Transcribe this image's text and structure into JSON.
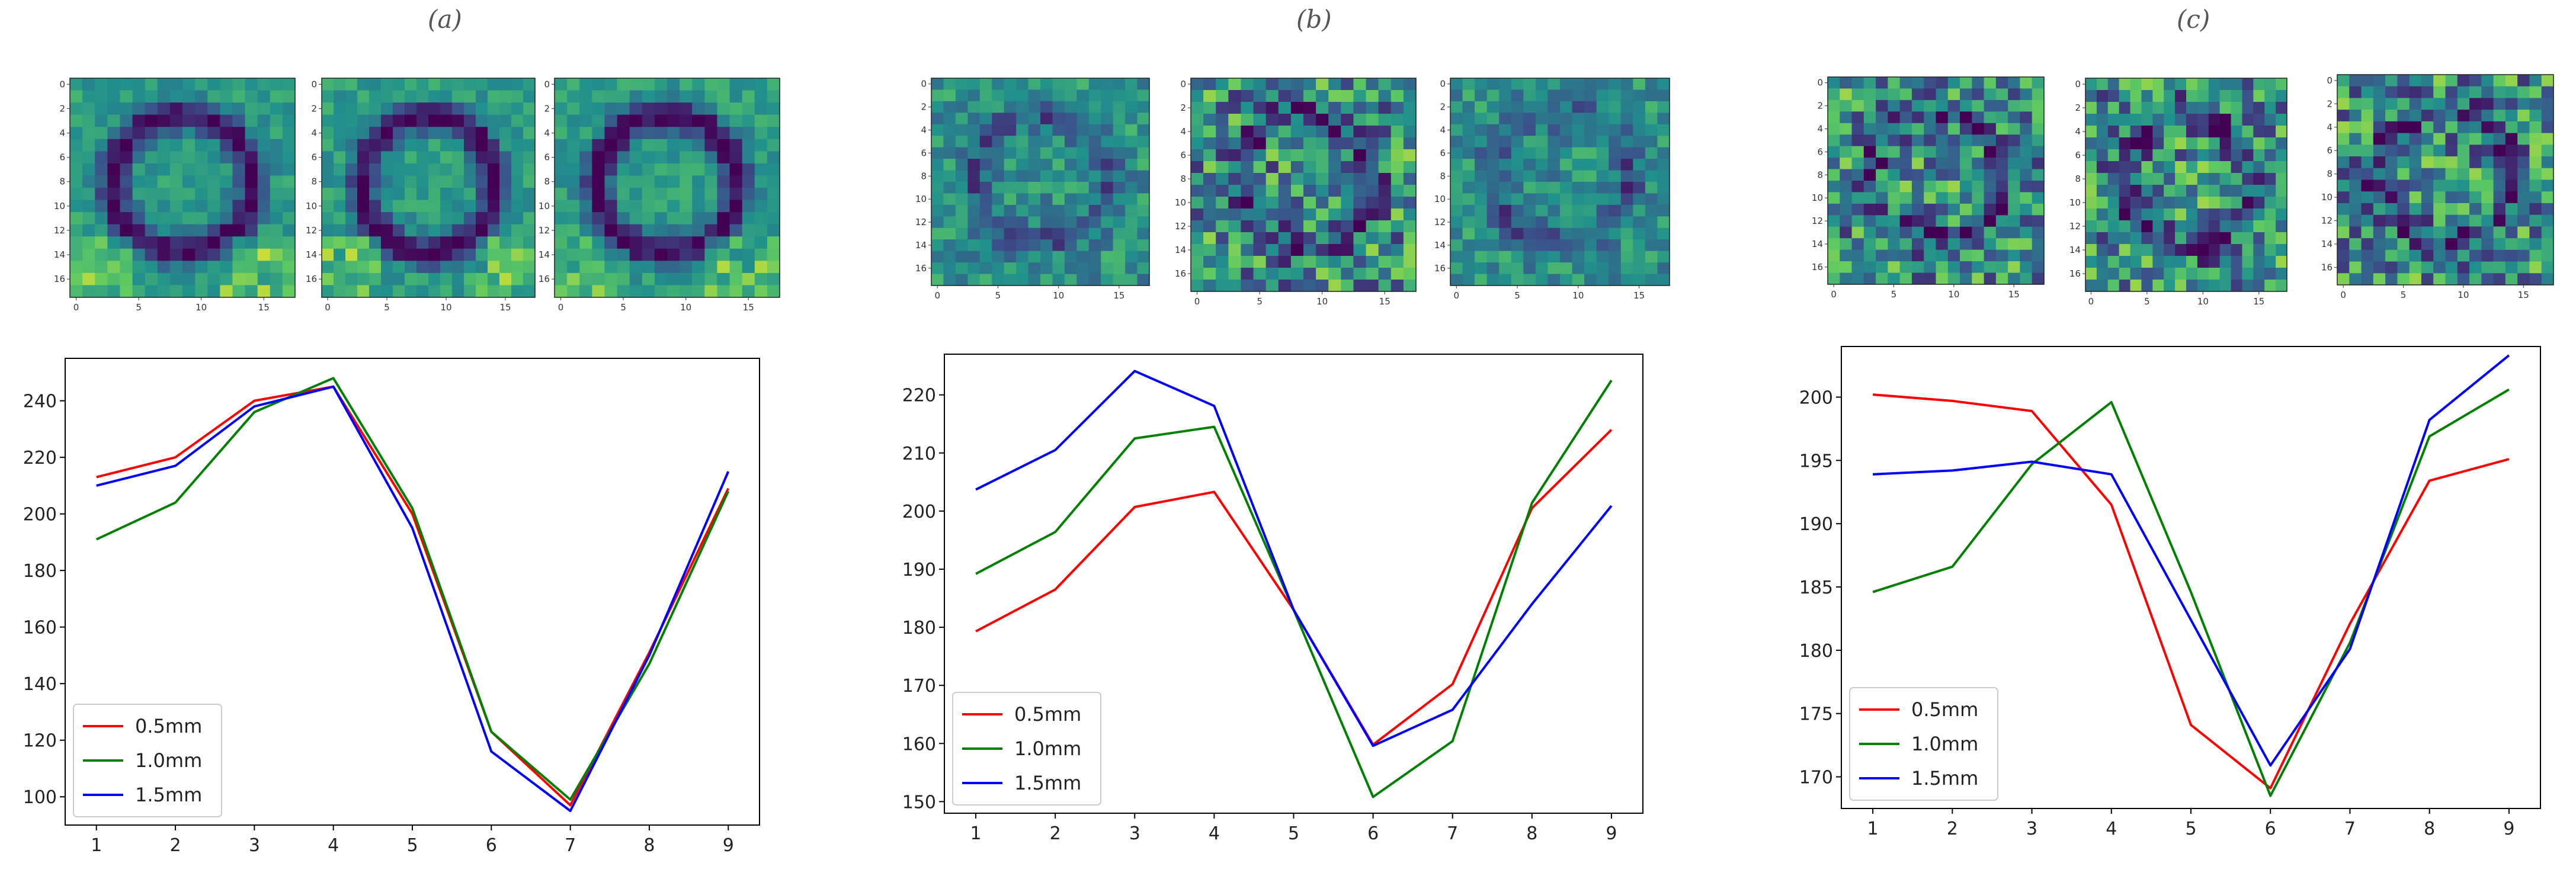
{
  "panels": [
    {
      "label": "(a)",
      "chart_data": {
        "type": "line",
        "x": [
          1,
          2,
          3,
          4,
          5,
          6,
          7,
          8,
          9
        ],
        "xticks": [
          "1",
          "2",
          "3",
          "4",
          "5",
          "6",
          "7",
          "8",
          "9"
        ],
        "ylim": [
          90,
          255
        ],
        "yticks": [
          "100",
          "120",
          "140",
          "160",
          "180",
          "200",
          "220",
          "240"
        ],
        "yticks_values": [
          100,
          120,
          140,
          160,
          180,
          200,
          220,
          240
        ],
        "legend_position": "lower-left",
        "series": [
          {
            "name": "0.5mm",
            "color": "#ff0000",
            "values": [
              213,
              220,
              240,
              245,
              200,
              123,
              97,
              151,
              209
            ]
          },
          {
            "name": "1.0mm",
            "color": "#008000",
            "values": [
              191,
              204,
              236,
              248,
              202,
              123,
              99,
              147,
              208
            ]
          },
          {
            "name": "1.5mm",
            "color": "#0000ff",
            "values": [
              210,
              217,
              238,
              245,
              195,
              116,
              95,
              150,
              215
            ]
          }
        ]
      },
      "heatmaps": [
        {
          "pattern": "ring",
          "yticks": [
            "0",
            "2",
            "4",
            "6",
            "8",
            "10",
            "12",
            "14",
            "16"
          ],
          "xticks": [
            "0",
            "5",
            "10",
            "15"
          ]
        },
        {
          "pattern": "ring",
          "yticks": [
            "0",
            "2",
            "4",
            "6",
            "8",
            "10",
            "12",
            "14",
            "16"
          ],
          "xticks": [
            "0",
            "5",
            "10",
            "15"
          ]
        },
        {
          "pattern": "ring",
          "yticks": [
            "0",
            "2",
            "4",
            "6",
            "8",
            "10",
            "12",
            "14",
            "16"
          ],
          "xticks": [
            "0",
            "5",
            "10",
            "15"
          ]
        }
      ]
    },
    {
      "label": "(b)",
      "chart_data": {
        "type": "line",
        "x": [
          1,
          2,
          3,
          4,
          5,
          6,
          7,
          8,
          9
        ],
        "xticks": [
          "1",
          "2",
          "3",
          "4",
          "5",
          "6",
          "7",
          "8",
          "9"
        ],
        "ylim": [
          148,
          227
        ],
        "yticks": [
          "150",
          "160",
          "170",
          "180",
          "190",
          "200",
          "210",
          "220"
        ],
        "yticks_values": [
          150,
          160,
          170,
          180,
          190,
          200,
          210,
          220
        ],
        "legend_position": "lower-left",
        "series": [
          {
            "name": "0.5mm",
            "color": "#ff0000",
            "values": [
              179.3,
              186.5,
              200.7,
              203.3,
              183,
              159.8,
              170.2,
              200.5,
              214
            ]
          },
          {
            "name": "1.0mm",
            "color": "#008000",
            "values": [
              189.2,
              196.4,
              212.5,
              214.5,
              183,
              150.8,
              160.4,
              201.4,
              222.5
            ]
          },
          {
            "name": "1.5mm",
            "color": "#0000ff",
            "values": [
              203.7,
              210.5,
              224.1,
              218.1,
              183,
              159.6,
              165.8,
              184,
              200.9
            ]
          }
        ]
      },
      "heatmaps": [
        {
          "pattern": "faint",
          "yticks": [
            "0",
            "2",
            "4",
            "6",
            "8",
            "10",
            "12",
            "14",
            "16"
          ],
          "xticks": [
            "0",
            "5",
            "10",
            "15"
          ]
        },
        {
          "pattern": "noisy",
          "yticks": [
            "0",
            "2",
            "4",
            "6",
            "8",
            "10",
            "12",
            "14",
            "16"
          ],
          "xticks": [
            "0",
            "5",
            "10",
            "15"
          ]
        },
        {
          "pattern": "faint",
          "yticks": [
            "0",
            "2",
            "4",
            "6",
            "8",
            "10",
            "12",
            "14",
            "16"
          ],
          "xticks": [
            "0",
            "5",
            "10",
            "15"
          ]
        }
      ]
    },
    {
      "label": "(c)",
      "chart_data": {
        "type": "line",
        "x": [
          1,
          2,
          3,
          4,
          5,
          6,
          7,
          8,
          9
        ],
        "xticks": [
          "1",
          "2",
          "3",
          "4",
          "5",
          "6",
          "7",
          "8",
          "9"
        ],
        "ylim": [
          167.5,
          204
        ],
        "yticks": [
          "170",
          "175",
          "180",
          "185",
          "190",
          "195",
          "200"
        ],
        "yticks_values": [
          170,
          175,
          180,
          185,
          190,
          195,
          200
        ],
        "legend_position": "lower-left",
        "series": [
          {
            "name": "0.5mm",
            "color": "#ff0000",
            "values": [
              200.2,
              199.7,
              198.9,
              191.5,
              174.1,
              169.1,
              182.1,
              193.4,
              195.1
            ]
          },
          {
            "name": "1.0mm",
            "color": "#008000",
            "values": [
              184.6,
              186.6,
              194.7,
              199.6,
              184.6,
              168.5,
              180.6,
              196.9,
              200.6
            ]
          },
          {
            "name": "1.5mm",
            "color": "#0000ff",
            "values": [
              193.9,
              194.2,
              194.9,
              193.9,
              182.4,
              170.9,
              180.1,
              198.2,
              203.3
            ]
          }
        ]
      },
      "heatmaps": [
        {
          "pattern": "noisy",
          "yticks": [
            "0",
            "2",
            "4",
            "6",
            "8",
            "10",
            "12",
            "14",
            "16"
          ],
          "xticks": [
            "0",
            "5",
            "10",
            "15"
          ]
        },
        {
          "pattern": "noisy",
          "yticks": [
            "0",
            "2",
            "4",
            "6",
            "8",
            "10",
            "12",
            "14",
            "16"
          ],
          "xticks": [
            "0",
            "5",
            "10",
            "15"
          ]
        },
        {
          "pattern": "noisy",
          "yticks": [
            "0",
            "2",
            "4",
            "6",
            "8",
            "10",
            "12",
            "14",
            "16"
          ],
          "xticks": [
            "0",
            "5",
            "10",
            "15"
          ]
        }
      ]
    }
  ]
}
